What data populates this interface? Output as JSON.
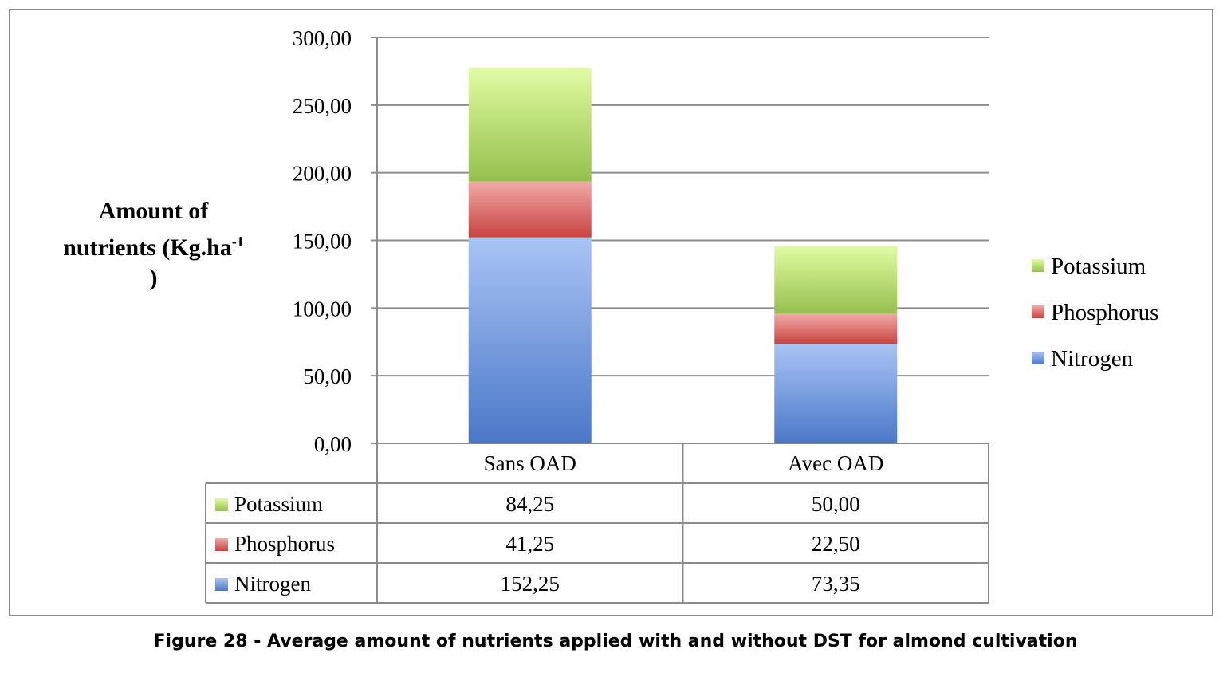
{
  "caption": "Figure 28 - Average amount of nutrients applied with and without DST for almond cultivation",
  "chart_data": {
    "type": "bar",
    "stacked": true,
    "ylabel_line1": "Amount of",
    "ylabel_line2_base": "nutrients (Kg.ha",
    "ylabel_sup": "-1",
    "ylabel_line3": ")",
    "ylim": [
      0,
      300
    ],
    "yticks": [
      "0,00",
      "50,00",
      "100,00",
      "150,00",
      "200,00",
      "250,00",
      "300,00"
    ],
    "grid": true,
    "legend_position": "right",
    "categories": [
      "Sans OAD",
      "Avec OAD"
    ],
    "category_marker": "",
    "series": [
      {
        "name": "Nitrogen",
        "values": [
          152.25,
          73.35
        ],
        "display": [
          "152,25",
          "73,35"
        ],
        "color_light": "#a9c4f5",
        "color_dark": "#4a78c8"
      },
      {
        "name": "Phosphorus",
        "values": [
          41.25,
          22.5
        ],
        "display": [
          "41,25",
          "22,50"
        ],
        "color_light": "#f2aaa8",
        "color_dark": "#c7433f"
      },
      {
        "name": "Potassium",
        "values": [
          84.25,
          50.0
        ],
        "display": [
          "84,25",
          "50,00"
        ],
        "color_light": "#e2fba3",
        "color_dark": "#95c04d"
      }
    ]
  }
}
